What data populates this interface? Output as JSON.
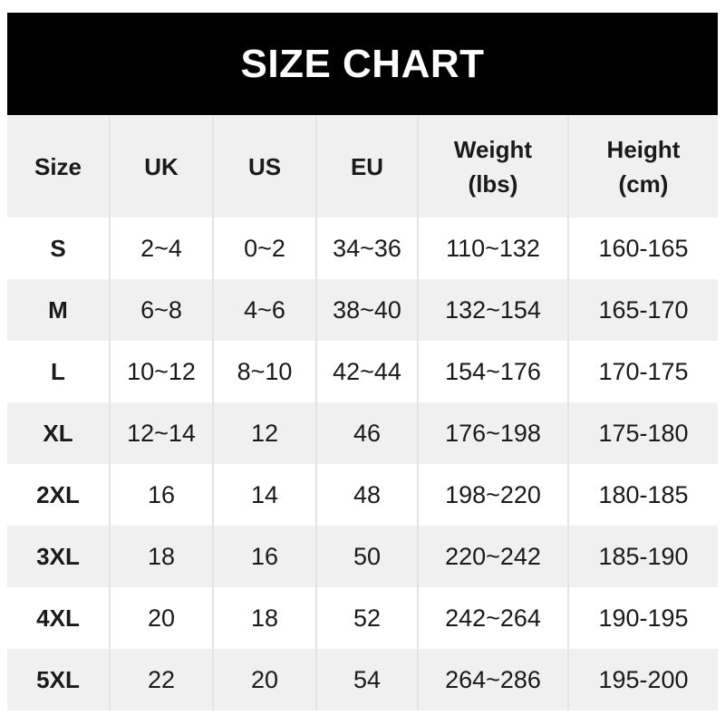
{
  "title": "SIZE CHART",
  "columns": [
    "Size",
    "UK",
    "US",
    "EU",
    "Weight\n(lbs)",
    "Height\n(cm)"
  ],
  "rows": [
    [
      "S",
      "2~4",
      "0~2",
      "34~36",
      "110~132",
      "160-165"
    ],
    [
      "M",
      "6~8",
      "4~6",
      "38~40",
      "132~154",
      "165-170"
    ],
    [
      "L",
      "10~12",
      "8~10",
      "42~44",
      "154~176",
      "170-175"
    ],
    [
      "XL",
      "12~14",
      "12",
      "46",
      "176~198",
      "175-180"
    ],
    [
      "2XL",
      "16",
      "14",
      "48",
      "198~220",
      "180-185"
    ],
    [
      "3XL",
      "18",
      "16",
      "50",
      "220~242",
      "185-190"
    ],
    [
      "4XL",
      "20",
      "18",
      "52",
      "242~264",
      "190-195"
    ],
    [
      "5XL",
      "22",
      "20",
      "54",
      "264~286",
      "195-200"
    ]
  ],
  "colors": {
    "header_bg": "#000000",
    "stripe": "#f0f0f0"
  }
}
